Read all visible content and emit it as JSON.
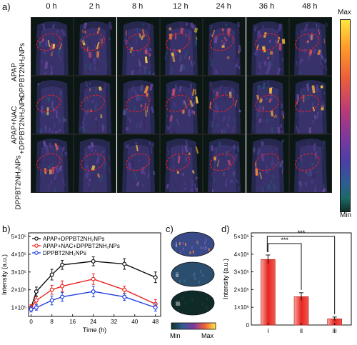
{
  "panels": {
    "a": "a)",
    "b": "b)",
    "c": "c)",
    "d": "d)"
  },
  "panel_a": {
    "time_labels": [
      "0 h",
      "2 h",
      "8 h",
      "12 h",
      "24 h",
      "36 h",
      "48 h"
    ],
    "row_labels": [
      [
        "APAP",
        "+DPPBT2NH₂NPs"
      ],
      [
        "APAP+NAC",
        "+DPPBT2NH₂NPs"
      ],
      [
        "DPPBT2NH₂NPs"
      ]
    ],
    "colorbar": {
      "max": "Max",
      "min": "Min"
    }
  },
  "panel_c": {
    "labels": [
      "i",
      "ii",
      "iii"
    ],
    "colorbar": {
      "min": "Min",
      "max": "Max"
    }
  },
  "chart_data": [
    {
      "type": "line",
      "panel": "b",
      "xlabel": "Time (h)",
      "ylabel": "Intensity (a.u.)",
      "x": [
        0,
        2,
        8,
        12,
        24,
        36,
        48
      ],
      "xticks": [
        "0",
        "8",
        "16",
        "24",
        "32",
        "40",
        "48"
      ],
      "yticks": [
        "1×10⁵",
        "2×10⁵",
        "3×10⁵",
        "4×10⁵",
        "5×10⁵"
      ],
      "xlim": [
        -1,
        50
      ],
      "ylim": [
        50000,
        520000
      ],
      "legend_position": "top-left",
      "series": [
        {
          "name": "APAP+DPPBT2NH₂NPs",
          "color": "#111111",
          "values": [
            100000,
            190000,
            285000,
            340000,
            360000,
            345000,
            270000
          ],
          "errors": [
            15000,
            25000,
            30000,
            25000,
            25000,
            30000,
            30000
          ]
        },
        {
          "name": "APAP+NAC+DPPBT2NH₂NPs",
          "color": "#e8231f",
          "values": [
            100000,
            140000,
            200000,
            220000,
            260000,
            200000,
            120000
          ],
          "errors": [
            15000,
            20000,
            25000,
            30000,
            30000,
            20000,
            25000
          ]
        },
        {
          "name": "DPPBT2NH₂NPs",
          "color": "#1f3fe0",
          "values": [
            90000,
            100000,
            140000,
            160000,
            190000,
            160000,
            100000
          ],
          "errors": [
            15000,
            15000,
            25000,
            25000,
            30000,
            20000,
            20000
          ]
        }
      ]
    },
    {
      "type": "bar",
      "panel": "d",
      "categories": [
        "i",
        "ii",
        "iii"
      ],
      "values": [
        370000,
        160000,
        35000
      ],
      "errors": [
        25000,
        22000,
        10000
      ],
      "ylabel": "Intensity (a.u.)",
      "ylim": [
        0,
        520000
      ],
      "yticks": [
        "0",
        "1×10⁵",
        "2×10⁵",
        "3×10⁵",
        "4×10⁵",
        "5×10⁵"
      ],
      "significance": [
        "***",
        "***"
      ],
      "color": "#e8231f"
    }
  ]
}
